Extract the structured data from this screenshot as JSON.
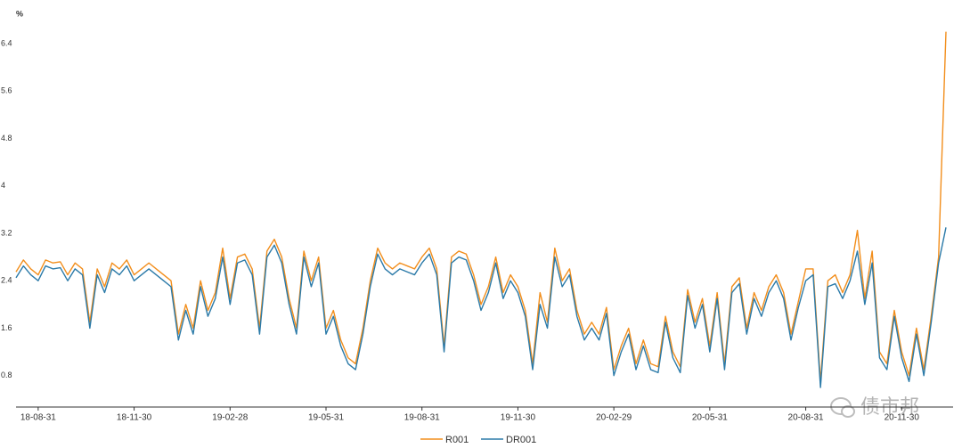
{
  "chart_data": {
    "type": "line",
    "y_unit": "%",
    "watermark": "债市邦",
    "categories": [
      null,
      null,
      null,
      "18-08-31",
      null,
      null,
      null,
      null,
      null,
      null,
      null,
      null,
      null,
      null,
      null,
      null,
      "18-11-30",
      null,
      null,
      null,
      null,
      null,
      null,
      null,
      null,
      null,
      null,
      null,
      null,
      "19-02-28",
      null,
      null,
      null,
      null,
      null,
      null,
      null,
      null,
      null,
      null,
      null,
      null,
      "19-05-31",
      null,
      null,
      null,
      null,
      null,
      null,
      null,
      null,
      null,
      null,
      null,
      null,
      "19-08-31",
      null,
      null,
      null,
      null,
      null,
      null,
      null,
      null,
      null,
      null,
      null,
      null,
      "19-11-30",
      null,
      null,
      null,
      null,
      null,
      null,
      null,
      null,
      null,
      null,
      null,
      null,
      "20-02-29",
      null,
      null,
      null,
      null,
      null,
      null,
      null,
      null,
      null,
      null,
      null,
      null,
      "20-05-31",
      null,
      null,
      null,
      null,
      null,
      null,
      null,
      null,
      null,
      null,
      null,
      null,
      "20-08-31",
      null,
      null,
      null,
      null,
      null,
      null,
      null,
      null,
      null,
      null,
      null,
      null,
      "20-11-30",
      null,
      null,
      null,
      null,
      null,
      null
    ],
    "series": [
      {
        "name": "R001",
        "color": "#f28e1c",
        "values": [
          2.55,
          2.75,
          2.6,
          2.5,
          2.75,
          2.7,
          2.72,
          2.5,
          2.7,
          2.6,
          1.7,
          2.6,
          2.3,
          2.7,
          2.6,
          2.75,
          2.5,
          2.6,
          2.7,
          2.6,
          2.5,
          2.4,
          1.5,
          2.0,
          1.6,
          2.4,
          1.9,
          2.2,
          2.95,
          2.1,
          2.8,
          2.85,
          2.6,
          1.6,
          2.9,
          3.1,
          2.8,
          2.1,
          1.6,
          2.9,
          2.4,
          2.8,
          1.6,
          1.9,
          1.4,
          1.1,
          1.0,
          1.6,
          2.4,
          2.95,
          2.7,
          2.6,
          2.7,
          2.65,
          2.6,
          2.8,
          2.95,
          2.6,
          1.3,
          2.8,
          2.9,
          2.85,
          2.5,
          2.0,
          2.3,
          2.8,
          2.2,
          2.5,
          2.3,
          1.9,
          1.0,
          2.2,
          1.7,
          2.95,
          2.4,
          2.6,
          1.9,
          1.5,
          1.7,
          1.5,
          1.95,
          0.9,
          1.3,
          1.6,
          1.0,
          1.4,
          1.0,
          0.95,
          1.8,
          1.2,
          0.95,
          2.25,
          1.7,
          2.1,
          1.3,
          2.2,
          1.0,
          2.3,
          2.45,
          1.6,
          2.2,
          1.9,
          2.3,
          2.5,
          2.2,
          1.5,
          2.05,
          2.6,
          2.6,
          0.7,
          2.4,
          2.5,
          2.2,
          2.5,
          3.25,
          2.1,
          2.9,
          1.2,
          1.0,
          1.9,
          1.2,
          0.8,
          1.6,
          0.9,
          1.8,
          2.8,
          6.6
        ]
      },
      {
        "name": "DR001",
        "color": "#2b7aa8",
        "values": [
          2.45,
          2.65,
          2.5,
          2.4,
          2.65,
          2.6,
          2.62,
          2.4,
          2.6,
          2.5,
          1.6,
          2.5,
          2.2,
          2.6,
          2.5,
          2.65,
          2.4,
          2.5,
          2.6,
          2.5,
          2.4,
          2.3,
          1.4,
          1.9,
          1.5,
          2.3,
          1.8,
          2.1,
          2.8,
          2.0,
          2.7,
          2.75,
          2.5,
          1.5,
          2.8,
          3.0,
          2.7,
          2.0,
          1.5,
          2.8,
          2.3,
          2.7,
          1.5,
          1.8,
          1.3,
          1.0,
          0.9,
          1.5,
          2.3,
          2.85,
          2.6,
          2.5,
          2.6,
          2.55,
          2.5,
          2.7,
          2.85,
          2.5,
          1.2,
          2.7,
          2.8,
          2.75,
          2.4,
          1.9,
          2.2,
          2.7,
          2.1,
          2.4,
          2.2,
          1.8,
          0.9,
          2.0,
          1.6,
          2.8,
          2.3,
          2.5,
          1.8,
          1.4,
          1.6,
          1.4,
          1.85,
          0.8,
          1.2,
          1.5,
          0.9,
          1.3,
          0.9,
          0.85,
          1.7,
          1.1,
          0.85,
          2.15,
          1.6,
          2.0,
          1.2,
          2.1,
          0.9,
          2.2,
          2.35,
          1.5,
          2.1,
          1.8,
          2.2,
          2.4,
          2.1,
          1.4,
          1.95,
          2.4,
          2.5,
          0.6,
          2.3,
          2.35,
          2.1,
          2.4,
          2.9,
          2.0,
          2.7,
          1.1,
          0.9,
          1.8,
          1.1,
          0.7,
          1.5,
          0.8,
          1.7,
          2.7,
          3.3
        ]
      }
    ],
    "ylim": [
      0.27,
      7.0
    ],
    "yticks": [
      0.8,
      1.6,
      2.4,
      3.2,
      4.0,
      4.8,
      5.6,
      6.4
    ],
    "legend": "bottom"
  }
}
